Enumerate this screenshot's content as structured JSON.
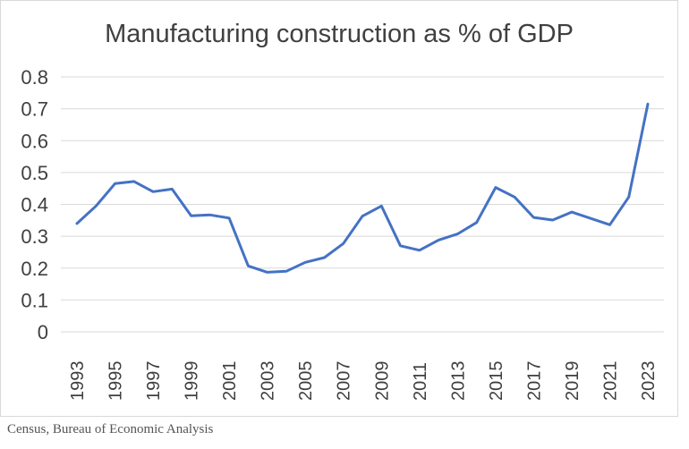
{
  "chart_data": {
    "type": "line",
    "title": "Manufacturing construction as % of GDP",
    "xlabel": "",
    "ylabel": "",
    "ylim": [
      0,
      0.8
    ],
    "yticks": [
      "0",
      "0.1",
      "0.2",
      "0.3",
      "0.4",
      "0.5",
      "0.6",
      "0.7",
      "0.8"
    ],
    "xlim": [
      1993,
      2023
    ],
    "xticks": [
      "1993",
      "1995",
      "1997",
      "1999",
      "2001",
      "2003",
      "2005",
      "2007",
      "2009",
      "2011",
      "2013",
      "2015",
      "2017",
      "2019",
      "2021",
      "2023"
    ],
    "grid": true,
    "legend": "none",
    "series": [
      {
        "color": "#4472c4",
        "x": [
          1993,
          1994,
          1995,
          1996,
          1997,
          1998,
          1999,
          2000,
          2001,
          2002,
          2003,
          2004,
          2005,
          2006,
          2007,
          2008,
          2009,
          2010,
          2011,
          2012,
          2013,
          2014,
          2015,
          2016,
          2017,
          2018,
          2019,
          2020,
          2021,
          2022,
          2023
        ],
        "values": [
          0.34,
          0.395,
          0.465,
          0.472,
          0.44,
          0.448,
          0.364,
          0.367,
          0.357,
          0.207,
          0.187,
          0.19,
          0.218,
          0.233,
          0.277,
          0.363,
          0.395,
          0.27,
          0.256,
          0.288,
          0.307,
          0.343,
          0.453,
          0.423,
          0.359,
          0.351,
          0.376,
          0.356,
          0.336,
          0.423,
          0.715
        ]
      }
    ]
  },
  "footer": {
    "source": "Census, Bureau of Economic Analysis"
  }
}
